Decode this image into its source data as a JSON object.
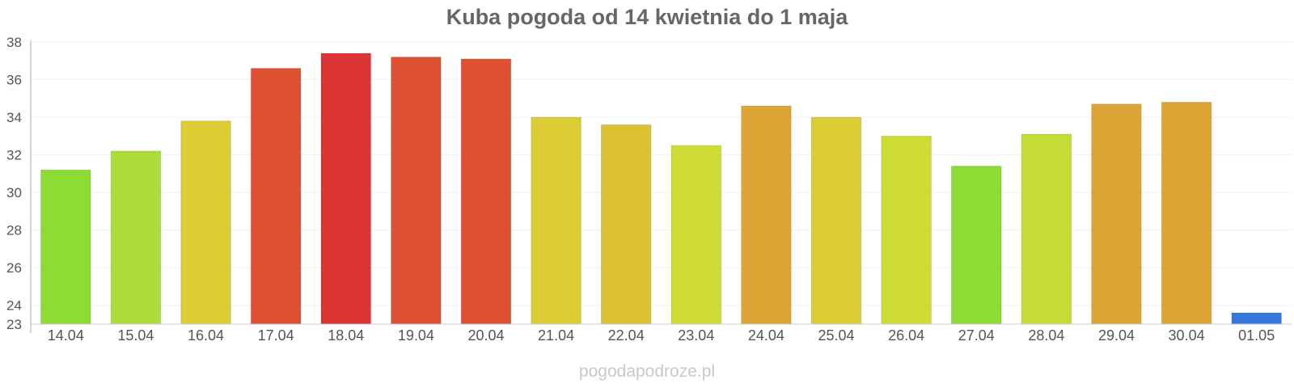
{
  "chart_data": {
    "type": "bar",
    "title": "Kuba pogoda od 14 kwietnia do 1 maja",
    "categories": [
      "14.04",
      "15.04",
      "16.04",
      "17.04",
      "18.04",
      "19.04",
      "20.04",
      "21.04",
      "22.04",
      "23.04",
      "24.04",
      "25.04",
      "26.04",
      "27.04",
      "28.04",
      "29.04",
      "30.04",
      "01.05"
    ],
    "values": [
      31.2,
      32.2,
      33.8,
      36.6,
      37.4,
      37.2,
      37.1,
      34.0,
      33.6,
      32.5,
      34.6,
      34.0,
      33.0,
      31.4,
      33.1,
      34.7,
      34.8,
      23.6
    ],
    "colors": [
      "#8cdc35",
      "#addd3a",
      "#dccc35",
      "#dd5032",
      "#dc3535",
      "#dd5032",
      "#dd5032",
      "#dccc35",
      "#dcc135",
      "#cfdc35",
      "#dca535",
      "#dccc35",
      "#cfdc35",
      "#8cdc35",
      "#c4dc35",
      "#dca535",
      "#dca535",
      "#3578dc"
    ],
    "yticks": [
      23,
      24,
      26,
      28,
      30,
      32,
      34,
      36,
      38
    ],
    "ylim": [
      23,
      38
    ],
    "grid": true,
    "legend": "none"
  },
  "watermark": "pogodapodroze.pl"
}
